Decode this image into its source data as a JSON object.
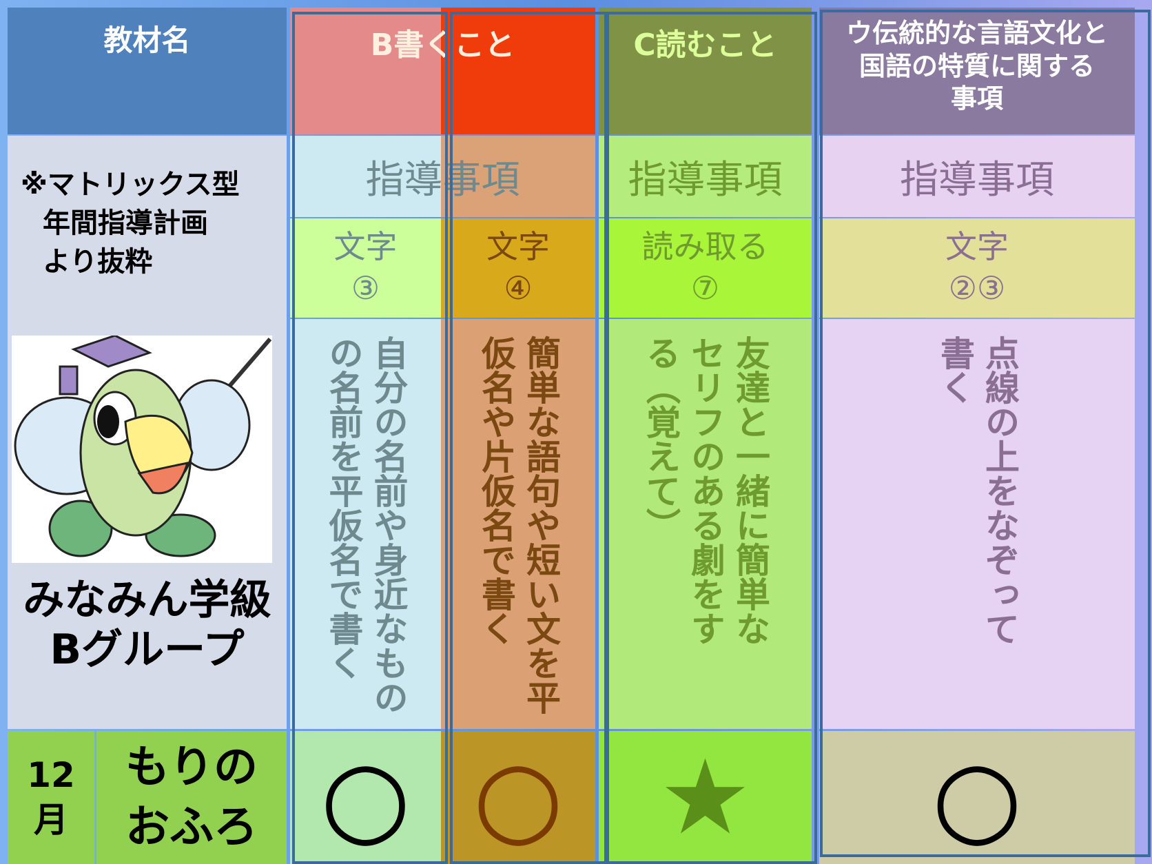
{
  "header": {
    "material": "教材名",
    "writing": "B書くこと",
    "reading": "C読むこと",
    "tradition": [
      "ウ伝統的な言語文化と",
      "国語の特質に関する",
      "事項"
    ]
  },
  "note": [
    "※マトリックス型",
    "年間指導計画",
    "より抜粋"
  ],
  "group": [
    "みなみん学級",
    "Bグループ"
  ],
  "guidance": {
    "writing": "指導事項",
    "reading": "指導事項",
    "tradition": "指導事項"
  },
  "items": [
    {
      "label": [
        "文字",
        "③"
      ],
      "description": [
        "自分の名前や身近なもの",
        "の名前を平仮名で書く"
      ],
      "mark": "○"
    },
    {
      "label": [
        "文字",
        "④"
      ],
      "description": [
        "簡単な語句や短い文を平",
        "仮名や片仮名で書く"
      ],
      "mark": "○"
    },
    {
      "label": [
        "読み取る",
        "⑦"
      ],
      "description": [
        "友達と一緒に簡単な",
        "セリフのある劇をす",
        "る（覚えて）"
      ],
      "mark": "★"
    },
    {
      "label": [
        "文字",
        "②③"
      ],
      "description": [
        "点線の上をなぞって",
        "書く"
      ],
      "mark": "○"
    }
  ],
  "lesson": {
    "month": [
      "12",
      "月"
    ],
    "title": [
      "もりの",
      "おふろ"
    ]
  }
}
